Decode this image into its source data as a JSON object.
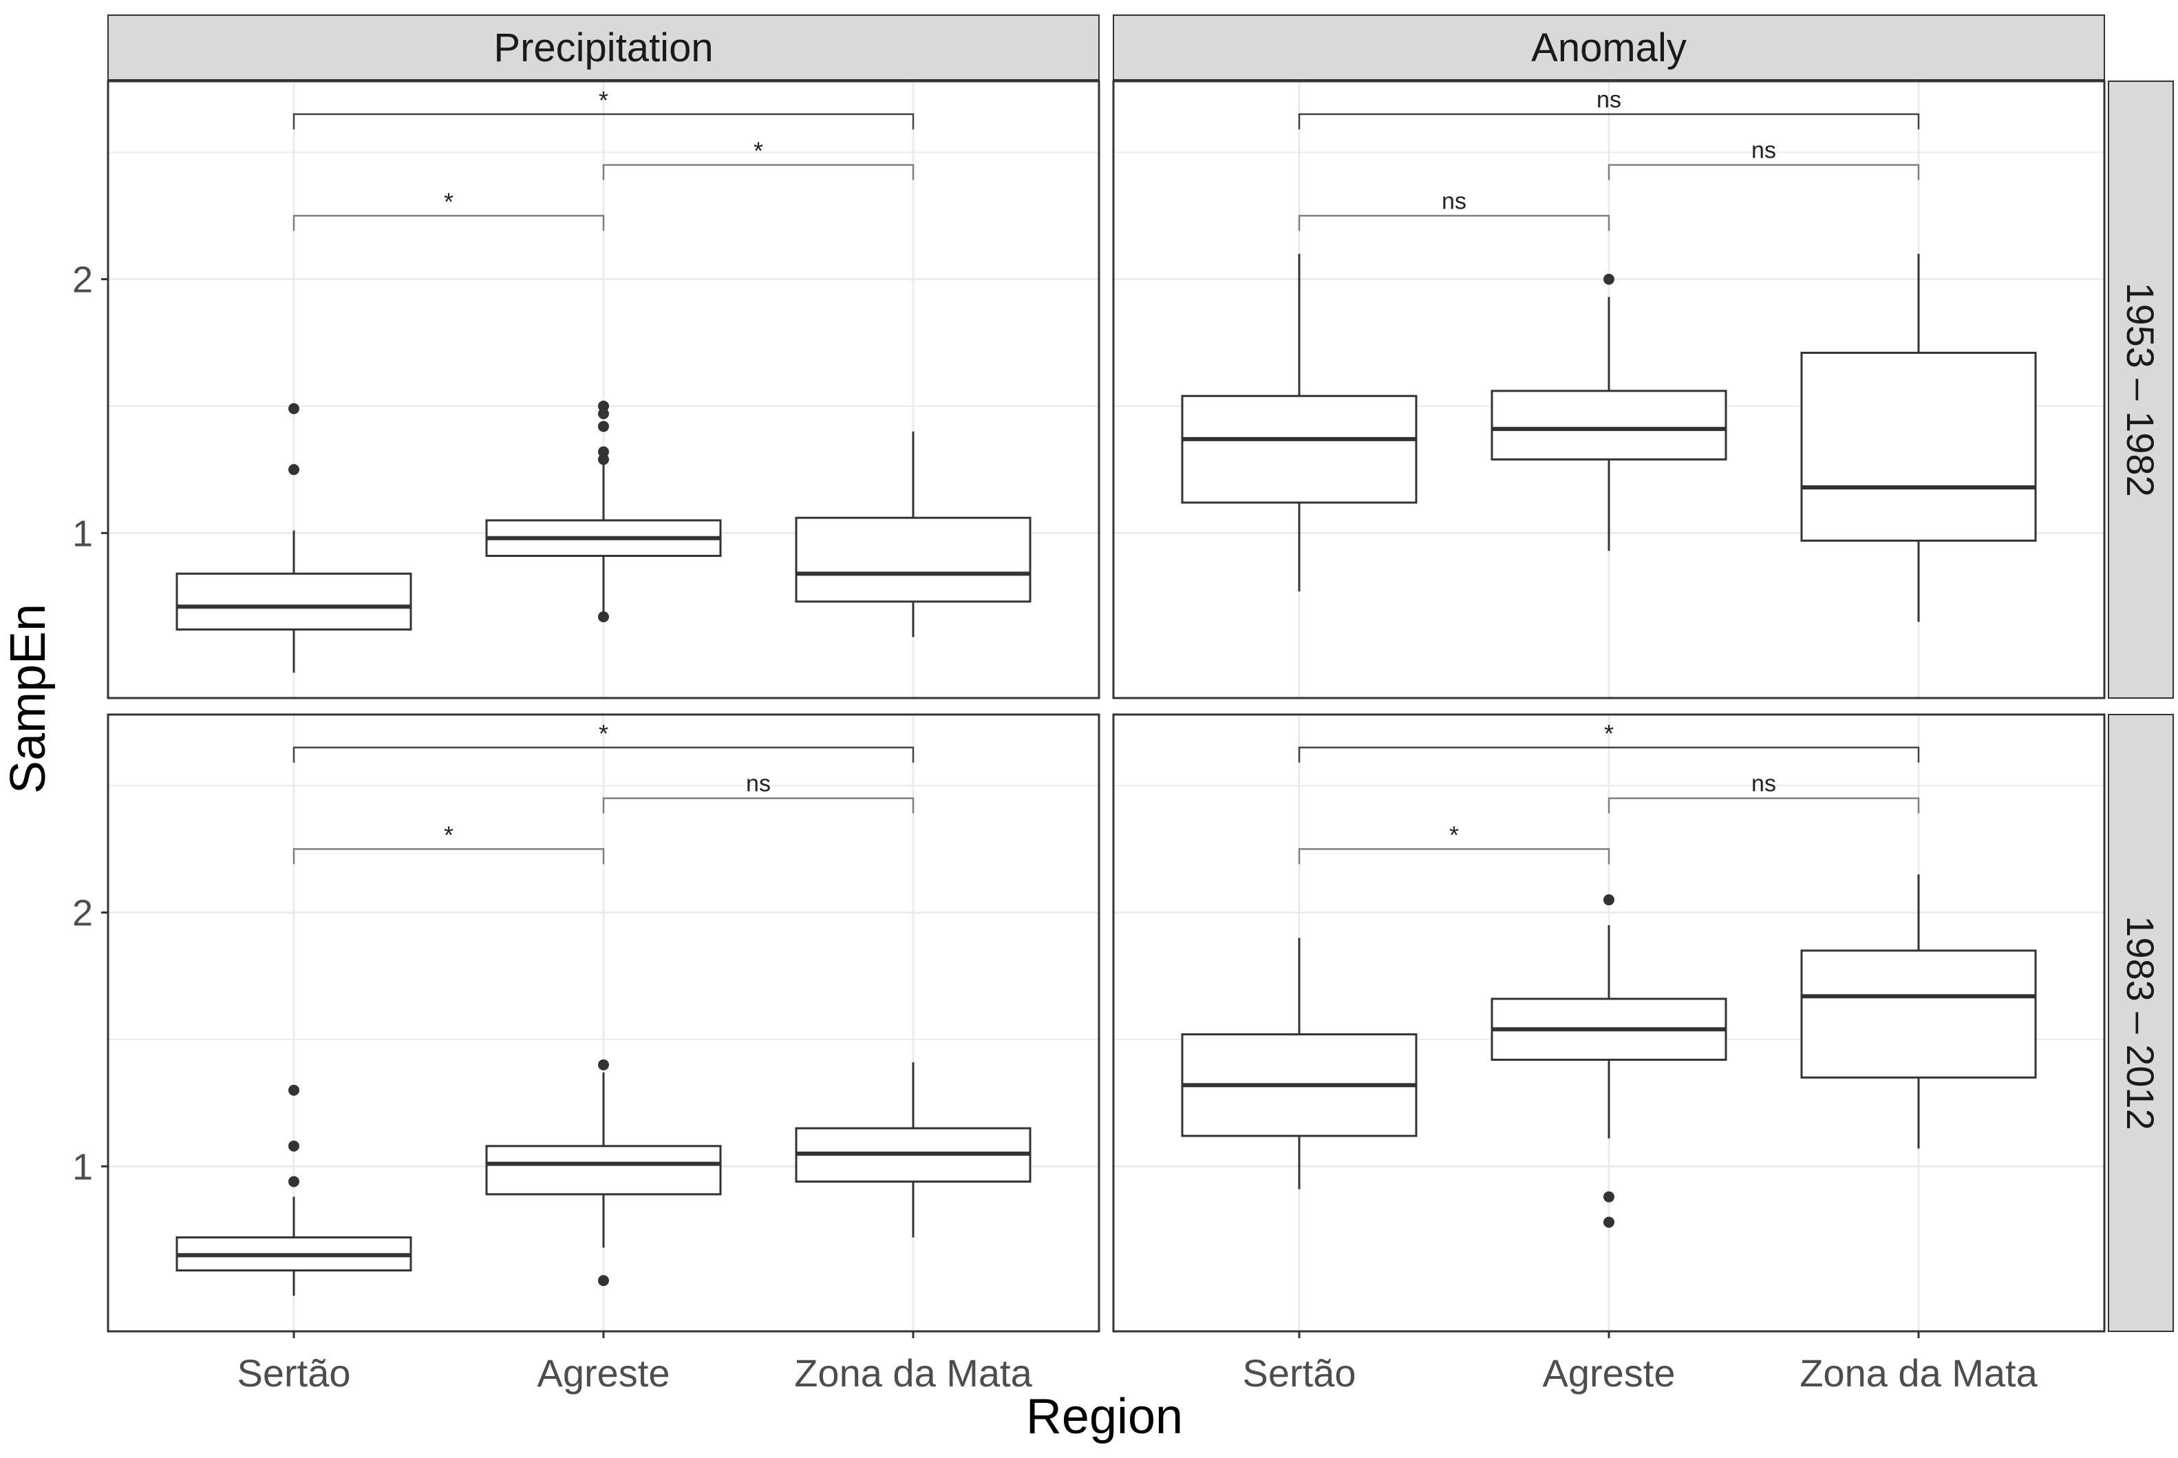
{
  "chart_data": {
    "type": "boxplot",
    "y_label": "SampEn",
    "x_label": "Region",
    "categories": [
      "Sertão",
      "Agreste",
      "Zona da Mata"
    ],
    "column_facets": [
      "Precipitation",
      "Anomaly"
    ],
    "row_facets": [
      "1953 – 1982",
      "1983 – 2012"
    ],
    "ylim": [
      0.35,
      2.78
    ],
    "y_ticks": [
      1,
      2
    ],
    "y_tick_labels": [
      "1",
      "2"
    ],
    "grid": true,
    "panels": [
      {
        "row": 0,
        "col": 0,
        "boxes": [
          {
            "category": "Sertão",
            "whisker_low": 0.45,
            "q1": 0.62,
            "median": 0.71,
            "q3": 0.84,
            "whisker_high": 1.01,
            "outliers": [
              1.25,
              1.49
            ]
          },
          {
            "category": "Agreste",
            "whisker_low": 0.67,
            "q1": 0.91,
            "median": 0.98,
            "q3": 1.05,
            "whisker_high": 1.27,
            "outliers": [
              0.67,
              1.29,
              1.32,
              1.42,
              1.47,
              1.5
            ]
          },
          {
            "category": "Zona da Mata",
            "whisker_low": 0.59,
            "q1": 0.73,
            "median": 0.84,
            "q3": 1.06,
            "whisker_high": 1.4,
            "outliers": []
          }
        ],
        "brackets": [
          {
            "from": "Sertão",
            "to": "Agreste",
            "label": "*",
            "y": 2.25
          },
          {
            "from": "Agreste",
            "to": "Zona da Mata",
            "label": "*",
            "y": 2.45
          },
          {
            "from": "Sertão",
            "to": "Zona da Mata",
            "label": "*",
            "y": 2.65
          }
        ]
      },
      {
        "row": 0,
        "col": 1,
        "boxes": [
          {
            "category": "Sertão",
            "whisker_low": 0.77,
            "q1": 1.12,
            "median": 1.37,
            "q3": 1.54,
            "whisker_high": 2.1,
            "outliers": []
          },
          {
            "category": "Agreste",
            "whisker_low": 0.93,
            "q1": 1.29,
            "median": 1.41,
            "q3": 1.56,
            "whisker_high": 1.93,
            "outliers": [
              2.0
            ]
          },
          {
            "category": "Zona da Mata",
            "whisker_low": 0.65,
            "q1": 0.97,
            "median": 1.18,
            "q3": 1.71,
            "whisker_high": 2.1,
            "outliers": []
          }
        ],
        "brackets": [
          {
            "from": "Sertão",
            "to": "Agreste",
            "label": "ns",
            "y": 2.25
          },
          {
            "from": "Agreste",
            "to": "Zona da Mata",
            "label": "ns",
            "y": 2.45
          },
          {
            "from": "Sertão",
            "to": "Zona da Mata",
            "label": "ns",
            "y": 2.65
          }
        ]
      },
      {
        "row": 1,
        "col": 0,
        "boxes": [
          {
            "category": "Sertão",
            "whisker_low": 0.49,
            "q1": 0.59,
            "median": 0.65,
            "q3": 0.72,
            "whisker_high": 0.88,
            "outliers": [
              0.94,
              1.08,
              1.3
            ]
          },
          {
            "category": "Agreste",
            "whisker_low": 0.68,
            "q1": 0.89,
            "median": 1.01,
            "q3": 1.08,
            "whisker_high": 1.37,
            "outliers": [
              0.55,
              1.4
            ]
          },
          {
            "category": "Zona da Mata",
            "whisker_low": 0.72,
            "q1": 0.94,
            "median": 1.05,
            "q3": 1.15,
            "whisker_high": 1.41,
            "outliers": []
          }
        ],
        "brackets": [
          {
            "from": "Sertão",
            "to": "Agreste",
            "label": "*",
            "y": 2.25
          },
          {
            "from": "Agreste",
            "to": "Zona da Mata",
            "label": "ns",
            "y": 2.45
          },
          {
            "from": "Sertão",
            "to": "Zona da Mata",
            "label": "*",
            "y": 2.65
          }
        ]
      },
      {
        "row": 1,
        "col": 1,
        "boxes": [
          {
            "category": "Sertão",
            "whisker_low": 0.91,
            "q1": 1.12,
            "median": 1.32,
            "q3": 1.52,
            "whisker_high": 1.9,
            "outliers": []
          },
          {
            "category": "Agreste",
            "whisker_low": 1.11,
            "q1": 1.42,
            "median": 1.54,
            "q3": 1.66,
            "whisker_high": 1.95,
            "outliers": [
              0.78,
              0.88,
              2.05
            ]
          },
          {
            "category": "Zona da Mata",
            "whisker_low": 1.07,
            "q1": 1.35,
            "median": 1.67,
            "q3": 1.85,
            "whisker_high": 2.15,
            "outliers": []
          }
        ],
        "brackets": [
          {
            "from": "Sertão",
            "to": "Agreste",
            "label": "*",
            "y": 2.25
          },
          {
            "from": "Agreste",
            "to": "Zona da Mata",
            "label": "ns",
            "y": 2.45
          },
          {
            "from": "Sertão",
            "to": "Zona da Mata",
            "label": "*",
            "y": 2.65
          }
        ]
      }
    ]
  },
  "colors": {
    "strip_fill": "#d9d9d9",
    "panel_border": "#333333",
    "grid": "#ebebeb",
    "box_line": "#333333",
    "bracket_line": "#808080",
    "text": "#1a1a1a",
    "tick_text": "#4d4d4d"
  }
}
